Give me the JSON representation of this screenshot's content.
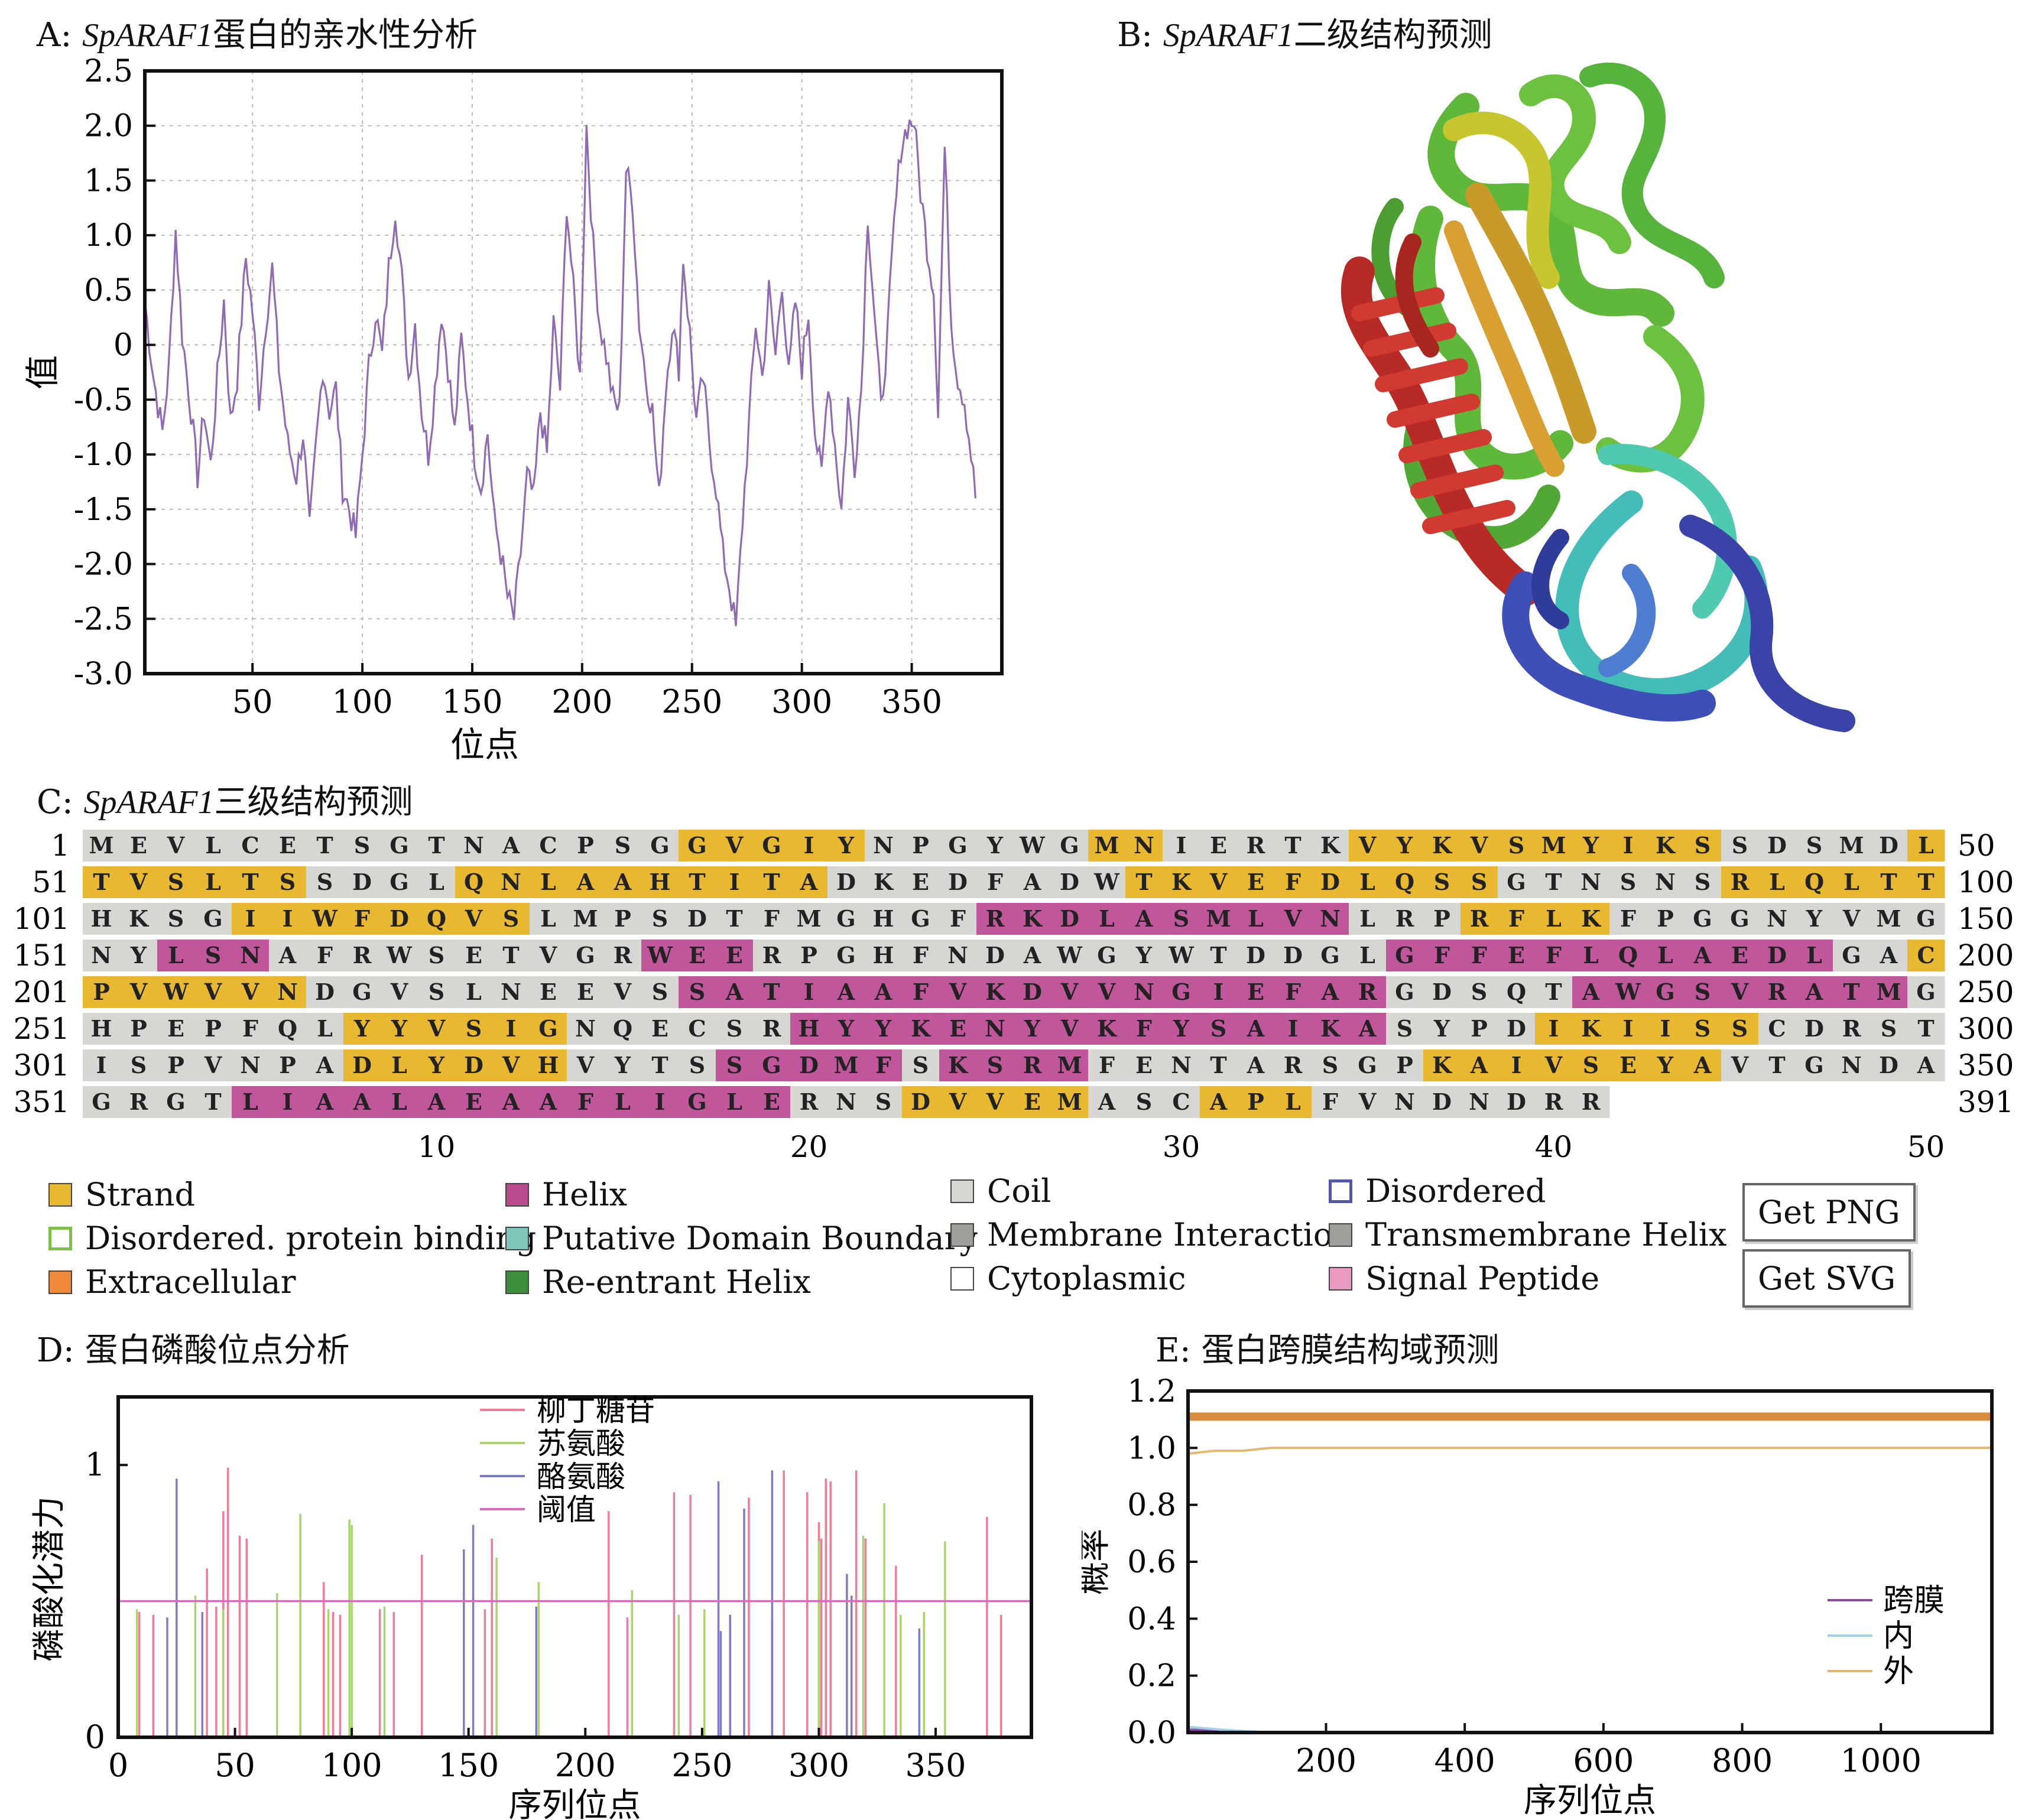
{
  "panelA": {
    "title_prefix": "A: ",
    "title_italic": "SpARAF1",
    "title_rest": "蛋白的亲水性分析",
    "chart_data": {
      "type": "line",
      "xlabel": "位点",
      "ylabel": "值",
      "xlim": [
        1,
        391
      ],
      "ylim": [
        -3.0,
        2.5
      ],
      "xticks": [
        50,
        100,
        150,
        200,
        250,
        300,
        350
      ],
      "yticks": [
        2.5,
        2.0,
        1.5,
        1.0,
        0.5,
        0,
        -0.5,
        -1.0,
        -1.5,
        -2.0,
        -2.5,
        -3.0
      ],
      "ytick_labels": [
        "2.5",
        "2.0",
        "1.5",
        "1.0",
        "0.5",
        "0",
        "-0.5",
        "-1.0",
        "-1.5",
        "-2.0",
        "-2.5",
        "-3.0"
      ],
      "grid": true,
      "color": "#8e6bb3",
      "keypoints": [
        [
          1,
          0.4
        ],
        [
          5,
          -0.3
        ],
        [
          9,
          -0.8
        ],
        [
          12,
          -0.2
        ],
        [
          15,
          1.05
        ],
        [
          18,
          0.1
        ],
        [
          22,
          -0.6
        ],
        [
          25,
          -1.2
        ],
        [
          28,
          -0.6
        ],
        [
          31,
          -1.1
        ],
        [
          34,
          -0.3
        ],
        [
          37,
          0.4
        ],
        [
          40,
          -0.7
        ],
        [
          43,
          -0.3
        ],
        [
          47,
          0.8
        ],
        [
          50,
          0.3
        ],
        [
          53,
          -0.5
        ],
        [
          56,
          0.2
        ],
        [
          59,
          0.7
        ],
        [
          62,
          -0.2
        ],
        [
          66,
          -0.9
        ],
        [
          70,
          -1.2
        ],
        [
          73,
          -0.8
        ],
        [
          76,
          -1.7
        ],
        [
          79,
          -0.9
        ],
        [
          82,
          -0.2
        ],
        [
          85,
          -0.6
        ],
        [
          88,
          -0.4
        ],
        [
          91,
          -1.3
        ],
        [
          94,
          -1.5
        ],
        [
          97,
          -1.75
        ],
        [
          100,
          -1.0
        ],
        [
          103,
          -0.2
        ],
        [
          106,
          0.3
        ],
        [
          109,
          -0.1
        ],
        [
          112,
          0.7
        ],
        [
          115,
          1.25
        ],
        [
          118,
          0.6
        ],
        [
          121,
          -0.3
        ],
        [
          124,
          0.2
        ],
        [
          127,
          -0.6
        ],
        [
          130,
          -1.0
        ],
        [
          133,
          -0.4
        ],
        [
          136,
          0.3
        ],
        [
          139,
          -0.2
        ],
        [
          142,
          -0.8
        ],
        [
          145,
          0.05
        ],
        [
          148,
          -0.5
        ],
        [
          151,
          -1.0
        ],
        [
          154,
          -1.3
        ],
        [
          157,
          -0.8
        ],
        [
          160,
          -1.6
        ],
        [
          163,
          -1.9
        ],
        [
          166,
          -2.3
        ],
        [
          169,
          -2.5
        ],
        [
          172,
          -1.9
        ],
        [
          175,
          -1.2
        ],
        [
          178,
          -1.4
        ],
        [
          181,
          -0.6
        ],
        [
          184,
          -1.0
        ],
        [
          187,
          0.2
        ],
        [
          190,
          -0.4
        ],
        [
          193,
          1.3
        ],
        [
          196,
          0.5
        ],
        [
          199,
          -0.3
        ],
        [
          202,
          2.0
        ],
        [
          205,
          0.9
        ],
        [
          208,
          0.2
        ],
        [
          211,
          -0.1
        ],
        [
          214,
          -0.5
        ],
        [
          217,
          -0.6
        ],
        [
          220,
          1.6
        ],
        [
          223,
          1.3
        ],
        [
          226,
          0.2
        ],
        [
          229,
          -0.3
        ],
        [
          232,
          -0.6
        ],
        [
          235,
          -1.4
        ],
        [
          238,
          -0.4
        ],
        [
          241,
          0.2
        ],
        [
          244,
          -0.2
        ],
        [
          246,
          0.8
        ],
        [
          249,
          0.1
        ],
        [
          252,
          -0.7
        ],
        [
          255,
          -0.3
        ],
        [
          258,
          -0.9
        ],
        [
          261,
          -1.3
        ],
        [
          264,
          -1.9
        ],
        [
          267,
          -2.2
        ],
        [
          270,
          -2.6
        ],
        [
          273,
          -1.6
        ],
        [
          276,
          -0.7
        ],
        [
          279,
          0.2
        ],
        [
          282,
          -0.3
        ],
        [
          285,
          0.5
        ],
        [
          288,
          -0.1
        ],
        [
          291,
          0.6
        ],
        [
          294,
          -0.3
        ],
        [
          297,
          0.4
        ],
        [
          300,
          -0.2
        ],
        [
          303,
          0.3
        ],
        [
          306,
          -0.8
        ],
        [
          309,
          -1.2
        ],
        [
          312,
          -0.3
        ],
        [
          315,
          -0.9
        ],
        [
          318,
          -1.5
        ],
        [
          321,
          -0.5
        ],
        [
          324,
          -1.1
        ],
        [
          327,
          -0.4
        ],
        [
          330,
          1.2
        ],
        [
          333,
          0.3
        ],
        [
          336,
          -0.6
        ],
        [
          339,
          0.1
        ],
        [
          342,
          1.1
        ],
        [
          345,
          1.8
        ],
        [
          348,
          2.0
        ],
        [
          351,
          2.05
        ],
        [
          354,
          1.4
        ],
        [
          357,
          0.9
        ],
        [
          360,
          0.5
        ],
        [
          362,
          -0.6
        ],
        [
          365,
          1.8
        ],
        [
          368,
          0.2
        ],
        [
          371,
          -0.3
        ],
        [
          374,
          -0.5
        ],
        [
          377,
          -1.0
        ],
        [
          379,
          -1.4
        ]
      ]
    }
  },
  "panelB": {
    "title_prefix": "B: ",
    "title_italic": "SpARAF1",
    "title_rest": "二级结构预测"
  },
  "panelC": {
    "title_prefix": "C: ",
    "title_italic": "SpARAF1",
    "title_rest": "三级结构预测",
    "rows": [
      {
        "start": "1",
        "end": "50",
        "residues": "MEVLCETSGTNACPSGGVGIYNPGYWGMNIERTKVYKVSMYIKSSDSMDL",
        "states": "CCCCCCCCCCCCCCCCSSSSSCCCCCCSSCCCCCSSSSSSSSSSCCCCCS"
      },
      {
        "start": "51",
        "end": "100",
        "residues": "TVSLTSSDGLQNLAAHTITADKEDFADWTKVEFDLQSSGTNSNSRLQLTT",
        "states": "SSSSSSCCCCSSSSSSSSSSCCCCCCCCSSSSSSSSSSCCCCCCSSSSSS"
      },
      {
        "start": "101",
        "end": "150",
        "residues": "HKSGIIWFDQVSLMPSDTFMGHGFRKDLASMLVNLRPRFLKFPGGNYVMG",
        "states": "CCCCSSSSSSSSCCCCCCCCCCCCHHHHHHHHHHCCCSSSSCCCCCCCCC"
      },
      {
        "start": "151",
        "end": "200",
        "residues": "NYLSNAFRWSETVGRWEERPGHFNDAWGYWTDDGLGFFEFLQLAEDLGAC",
        "states": "CCHHHCCCCCCCCCCHHHCCCCCCCCCCCCCCCCCHHHHHHHHHHHHCCS"
      },
      {
        "start": "201",
        "end": "250",
        "residues": "PVWVVNDGVSLNEEVSSATIAAFVKDVVNGIEFARGDSQTAWGSVRATMG",
        "states": "SSSSSSCCCCCCCCCCHHHHHHHHHHHHHHHHHHHCCCCCHHHHHHHHHC"
      },
      {
        "start": "251",
        "end": "300",
        "residues": "HPEPFQLYYVSIGNQECSRHYYKENYVKFYSAIKASYPDIKIISSCDRST",
        "states": "CCCCCCCSSSSSSCCCCCCHHHHHHHHHHHHHHHHCCCCSSSSSSCCCCC"
      },
      {
        "start": "301",
        "end": "350",
        "residues": "ISPVNPADLYDVHVYTSSGDMFSKSRMFENTARSGPKAIVSEYAVTGNDA",
        "states": "CCCCCCCSSSSSSCCCCHHHHHCHHHHCCCCCCCCCSSSSSSSSCCCCCC"
      },
      {
        "start": "351",
        "end": "391",
        "residues": "GRGTLIAALAEAAFLIGLERNSDVVEMASCAPLFVNDNDRR",
        "states": "CCCCHHHHHHHHHHHHHHHCCCSSSSSCCCSSSCCCCCCCC"
      }
    ],
    "bottom_ticks": [
      "10",
      "20",
      "30",
      "40",
      "50"
    ],
    "colors": {
      "S": "#e8b830",
      "H": "#c0579a",
      "C": "#d6d6d2"
    },
    "legend": [
      {
        "label": "Strand",
        "color": "#e8b830",
        "style": "fill"
      },
      {
        "label": "Helix",
        "color": "#b94a8c",
        "style": "fill"
      },
      {
        "label": "Coil",
        "color": "#d6d6d2",
        "style": "fill"
      },
      {
        "label": "Disordered",
        "color": "#5456a8",
        "style": "outline"
      },
      {
        "label": "Disordered. protein binding",
        "color": "#7cc04a",
        "style": "outline"
      },
      {
        "label": "Putative Domain Boundary",
        "color": "#7fc6b8",
        "style": "fill"
      },
      {
        "label": "Membrane Interaction",
        "color": "#9ea09a",
        "style": "fill"
      },
      {
        "label": "Transmembrane Helix",
        "color": "#9ea09a",
        "style": "fill"
      },
      {
        "label": "Extracellular",
        "color": "#ee8a3a",
        "style": "fill"
      },
      {
        "label": "Re-entrant Helix",
        "color": "#3d8e3a",
        "style": "fill"
      },
      {
        "label": "Cytoplasmic",
        "color": "#ffffff",
        "style": "fill"
      },
      {
        "label": "Signal Peptide",
        "color": "#e89ac0",
        "style": "fill"
      }
    ],
    "buttons": {
      "png": "Get PNG",
      "svg": "Get SVG"
    }
  },
  "panelD": {
    "title": "D: 蛋白磷酸位点分析",
    "chart_data": {
      "type": "bar",
      "xlabel": "序列位点",
      "ylabel": "磷酸化潜力",
      "xlim": [
        0,
        391
      ],
      "ylim": [
        0,
        1.25
      ],
      "xticks": [
        0,
        50,
        100,
        150,
        200,
        250,
        300,
        350
      ],
      "yticks": [
        0,
        1
      ],
      "threshold": 0.5,
      "legend": [
        {
          "name": "柳丁糖苷",
          "color": "#f07c97"
        },
        {
          "name": "苏氨酸",
          "color": "#a9d56c"
        },
        {
          "name": "酪氨酸",
          "color": "#7d7cc4"
        },
        {
          "name": "阈值",
          "color": "#d86bc0"
        }
      ],
      "series": [
        {
          "name": "柳丁糖苷",
          "color": "#f07c97",
          "points": [
            [
              9,
              0.46
            ],
            [
              15,
              0.45
            ],
            [
              38,
              0.62
            ],
            [
              42,
              0.48
            ],
            [
              45,
              0.83
            ],
            [
              47,
              0.99
            ],
            [
              52,
              0.74
            ],
            [
              55,
              0.73
            ],
            [
              88,
              0.57
            ],
            [
              92,
              0.46
            ],
            [
              95,
              0.45
            ],
            [
              112,
              0.47
            ],
            [
              118,
              0.46
            ],
            [
              130,
              0.67
            ],
            [
              157,
              0.47
            ],
            [
              160,
              0.73
            ],
            [
              210,
              0.83
            ],
            [
              218,
              0.44
            ],
            [
              238,
              0.9
            ],
            [
              245,
              0.89
            ],
            [
              270,
              0.88
            ],
            [
              285,
              0.98
            ],
            [
              295,
              0.9
            ],
            [
              300,
              0.79
            ],
            [
              301,
              0.73
            ],
            [
              303,
              0.95
            ],
            [
              305,
              0.94
            ],
            [
              316,
              0.98
            ],
            [
              320,
              0.73
            ],
            [
              333,
              0.63
            ],
            [
              372,
              0.81
            ],
            [
              378,
              0.45
            ]
          ]
        },
        {
          "name": "苏氨酸",
          "color": "#a9d56c",
          "points": [
            [
              8,
              0.47
            ],
            [
              33,
              0.52
            ],
            [
              45,
              0.47
            ],
            [
              68,
              0.53
            ],
            [
              78,
              0.82
            ],
            [
              90,
              0.47
            ],
            [
              99,
              0.8
            ],
            [
              100,
              0.78
            ],
            [
              114,
              0.48
            ],
            [
              162,
              0.66
            ],
            [
              180,
              0.57
            ],
            [
              220,
              0.54
            ],
            [
              240,
              0.45
            ],
            [
              251,
              0.47
            ],
            [
              300,
              0.72
            ],
            [
              319,
              0.74
            ],
            [
              328,
              0.86
            ],
            [
              335,
              0.45
            ],
            [
              345,
              0.46
            ],
            [
              354,
              0.72
            ]
          ]
        },
        {
          "name": "酪氨酸",
          "color": "#7d7cc4",
          "points": [
            [
              21,
              0.44
            ],
            [
              25,
              0.95
            ],
            [
              36,
              0.46
            ],
            [
              148,
              0.69
            ],
            [
              152,
              0.78
            ],
            [
              179,
              0.48
            ],
            [
              257,
              0.94
            ],
            [
              258,
              0.39
            ],
            [
              262,
              0.45
            ],
            [
              268,
              0.84
            ],
            [
              280,
              0.98
            ],
            [
              280,
              0.44
            ],
            [
              312,
              0.6
            ],
            [
              314,
              0.52
            ],
            [
              343,
              0.4
            ]
          ]
        }
      ]
    }
  },
  "panelE": {
    "title": "E: 蛋白跨膜结构域预测",
    "chart_data": {
      "type": "line",
      "xlabel": "序列位点",
      "ylabel": "概率",
      "xlim": [
        1,
        1160
      ],
      "ylim": [
        0,
        1.2
      ],
      "xticks": [
        200,
        400,
        600,
        800,
        1000
      ],
      "yticks": [
        0.0,
        0.2,
        0.4,
        0.6,
        0.8,
        1.0,
        1.2
      ],
      "ytick_labels": [
        "0.0",
        "0.2",
        "0.4",
        "0.6",
        "0.8",
        "1.0",
        "1.2"
      ],
      "series": [
        {
          "name": "跨膜",
          "color": "#8d4aa2",
          "points": [
            [
              1,
              0.01
            ],
            [
              50,
              0.01
            ],
            [
              100,
              0.0
            ],
            [
              1160,
              0.0
            ]
          ]
        },
        {
          "name": "内",
          "color": "#9fd1e8",
          "points": [
            [
              1,
              0.02
            ],
            [
              50,
              0.01
            ],
            [
              120,
              0.0
            ],
            [
              1160,
              0.0
            ]
          ]
        },
        {
          "name": "外",
          "color": "#e4b870",
          "points": [
            [
              1,
              0.98
            ],
            [
              40,
              0.99
            ],
            [
              80,
              0.99
            ],
            [
              120,
              1.0
            ],
            [
              1160,
              1.0
            ]
          ]
        }
      ],
      "band": {
        "value": 1.11,
        "color": "#d98c3a"
      }
    }
  }
}
